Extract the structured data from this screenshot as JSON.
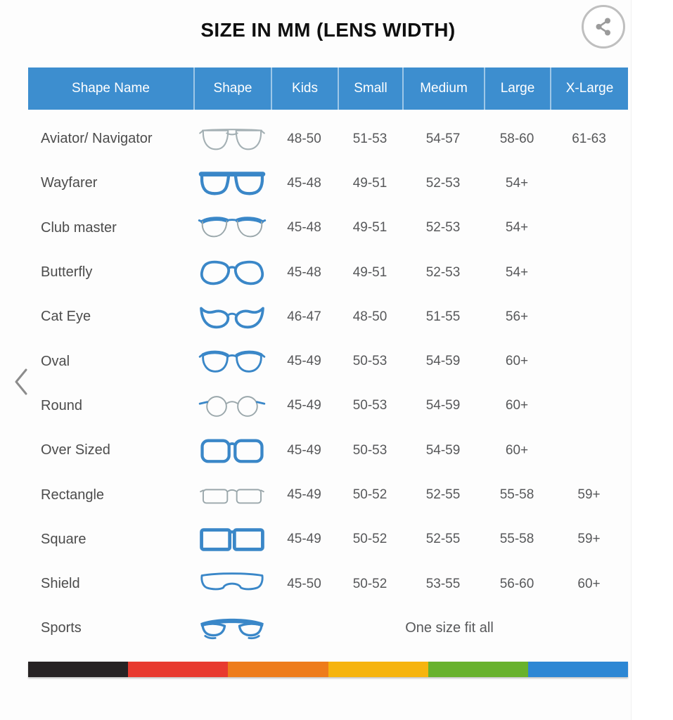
{
  "page": {
    "title": "SIZE IN MM (LENS WIDTH)"
  },
  "share": {
    "icon": "share-icon"
  },
  "carousel": {
    "prev_icon": "chevron-left-icon",
    "next_icon": "chevron-right-icon"
  },
  "table": {
    "columns": [
      "Shape Name",
      "Shape",
      "Kids",
      "Small",
      "Medium",
      "Large",
      "X-Large"
    ],
    "rows": [
      {
        "name": "Aviator/ Navigator",
        "icon": "aviator",
        "kids": "48-50",
        "small": "51-53",
        "medium": "54-57",
        "large": "58-60",
        "xlarge": "61-63"
      },
      {
        "name": "Wayfarer",
        "icon": "wayfarer",
        "kids": "45-48",
        "small": "49-51",
        "medium": "52-53",
        "large": "54+",
        "xlarge": ""
      },
      {
        "name": "Club master",
        "icon": "clubmaster",
        "kids": "45-48",
        "small": "49-51",
        "medium": "52-53",
        "large": "54+",
        "xlarge": ""
      },
      {
        "name": "Butterfly",
        "icon": "butterfly",
        "kids": "45-48",
        "small": "49-51",
        "medium": "52-53",
        "large": "54+",
        "xlarge": ""
      },
      {
        "name": "Cat Eye",
        "icon": "cateye",
        "kids": "46-47",
        "small": "48-50",
        "medium": "51-55",
        "large": "56+",
        "xlarge": ""
      },
      {
        "name": "Oval",
        "icon": "oval",
        "kids": "45-49",
        "small": "50-53",
        "medium": "54-59",
        "large": "60+",
        "xlarge": ""
      },
      {
        "name": "Round",
        "icon": "round",
        "kids": "45-49",
        "small": "50-53",
        "medium": "54-59",
        "large": "60+",
        "xlarge": ""
      },
      {
        "name": "Over Sized",
        "icon": "oversized",
        "kids": "45-49",
        "small": "50-53",
        "medium": "54-59",
        "large": "60+",
        "xlarge": ""
      },
      {
        "name": "Rectangle",
        "icon": "rectangle",
        "kids": "45-49",
        "small": "50-52",
        "medium": "52-55",
        "large": "55-58",
        "xlarge": "59+"
      },
      {
        "name": "Square",
        "icon": "square",
        "kids": "45-49",
        "small": "50-52",
        "medium": "52-55",
        "large": "55-58",
        "xlarge": "59+"
      },
      {
        "name": "Shield",
        "icon": "shield",
        "kids": "45-50",
        "small": "50-52",
        "medium": "53-55",
        "large": "56-60",
        "xlarge": "60+"
      },
      {
        "name": "Sports",
        "icon": "sports",
        "one_size": "One size fit all"
      }
    ]
  },
  "colors": {
    "header_blue": "#3d8ecf",
    "icon_blue": "#3a87c8",
    "icon_gray": "#a4b0b4",
    "text_gray": "#57585a",
    "stripe": [
      "#272324",
      "#e83a2f",
      "#ee7c1b",
      "#f6b40e",
      "#68b22d",
      "#2d87d4"
    ]
  }
}
